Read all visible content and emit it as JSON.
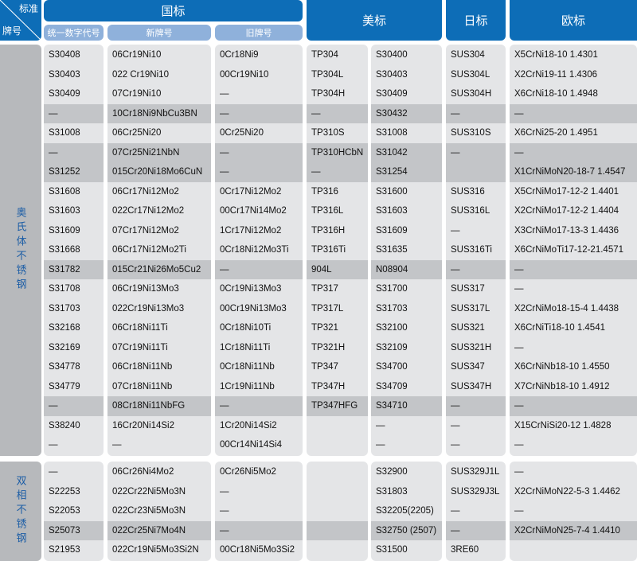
{
  "corner": {
    "top": "标准",
    "bottom": "牌号"
  },
  "headers": {
    "gb": "国标",
    "us": "美标",
    "jp": "日标",
    "eu": "欧标"
  },
  "subheaders": {
    "code": "统一数字代号",
    "new": "新牌号",
    "old": "旧牌号"
  },
  "sections": [
    {
      "label": "奥氏体不锈钢",
      "rows": [
        {
          "dark": false,
          "cells": [
            "S30408",
            "06Cr19Ni10",
            "0Cr18Ni9",
            "TP304",
            "S30400",
            "SUS304",
            "X5CrNi18-10 1.4301"
          ]
        },
        {
          "dark": false,
          "cells": [
            "S30403",
            "022 Cr19Ni10",
            "00Cr19Ni10",
            "TP304L",
            "S30403",
            "SUS304L",
            "X2CrNi19-11  1.4306"
          ]
        },
        {
          "dark": false,
          "cells": [
            "S30409",
            "07Cr19Ni10",
            "—",
            "TP304H",
            "S30409",
            "SUS304H",
            "X6CrNi18-10  1.4948"
          ]
        },
        {
          "dark": true,
          "cells": [
            "—",
            "10Cr18Ni9NbCu3BN",
            "—",
            "—",
            "S30432",
            "—",
            "—"
          ]
        },
        {
          "dark": false,
          "cells": [
            "S31008",
            "06Cr25Ni20",
            "0Cr25Ni20",
            "TP310S",
            "S31008",
            "SUS310S",
            "X6CrNi25-20 1.4951"
          ]
        },
        {
          "dark": true,
          "cells": [
            "—",
            "07Cr25Ni21NbN",
            "—",
            "TP310HCbN",
            "S31042",
            "—",
            "—"
          ]
        },
        {
          "dark": true,
          "cells": [
            "S31252",
            "015Cr20Ni18Mo6CuN",
            "—",
            "—",
            "S31254",
            "",
            "X1CrNiMoN20-18-7 1.4547"
          ]
        },
        {
          "dark": false,
          "cells": [
            "S31608",
            "06Cr17Ni12Mo2",
            "0Cr17Ni12Mo2",
            "TP316",
            "S31600",
            "SUS316",
            "X5CrNiMo17-12-2 1.4401"
          ]
        },
        {
          "dark": false,
          "cells": [
            "S31603",
            "022Cr17Ni12Mo2",
            "00Cr17Ni14Mo2",
            "TP316L",
            "S31603",
            "SUS316L",
            "X2CrNiMo17-12-2 1.4404"
          ]
        },
        {
          "dark": false,
          "cells": [
            "S31609",
            "07Cr17Ni12Mo2",
            "1Cr17Ni12Mo2",
            "TP316H",
            "S31609",
            "—",
            "X3CrNiMo17-13-3 1.4436"
          ]
        },
        {
          "dark": false,
          "cells": [
            "S31668",
            "06Cr17Ni12Mo2Ti",
            "0Cr18Ni12Mo3Ti",
            "TP316Ti",
            "S31635",
            "SUS316Ti",
            "X6CrNiMoTi17-12-21.4571"
          ]
        },
        {
          "dark": true,
          "cells": [
            "S31782",
            "015Cr21Ni26Mo5Cu2",
            "—",
            "904L",
            "N08904",
            "—",
            "—"
          ]
        },
        {
          "dark": false,
          "cells": [
            "S31708",
            "06Cr19Ni13Mo3",
            "0Cr19Ni13Mo3",
            "TP317",
            "S31700",
            "SUS317",
            "—"
          ]
        },
        {
          "dark": false,
          "cells": [
            "S31703",
            "022Cr19Ni13Mo3",
            "00Cr19Ni13Mo3",
            "TP317L",
            "S31703",
            "SUS317L",
            "X2CrNiMo18-15-4 1.4438"
          ]
        },
        {
          "dark": false,
          "cells": [
            "S32168",
            "06Cr18Ni11Ti",
            "0Cr18Ni10Ti",
            "TP321",
            "S32100",
            "SUS321",
            "X6CrNiTi18-10 1.4541"
          ]
        },
        {
          "dark": false,
          "cells": [
            "S32169",
            "07Cr19Ni11Ti",
            "1Cr18Ni11Ti",
            "TP321H",
            "S32109",
            "SUS321H",
            "—"
          ]
        },
        {
          "dark": false,
          "cells": [
            "S34778",
            "06Cr18Ni11Nb",
            "0Cr18Ni11Nb",
            "TP347",
            "S34700",
            "SUS347",
            "X6CrNiNb18-10 1.4550"
          ]
        },
        {
          "dark": false,
          "cells": [
            "S34779",
            "07Cr18Ni11Nb",
            "1Cr19Ni11Nb",
            "TP347H",
            "S34709",
            "SUS347H",
            "X7CrNiNb18-10 1.4912"
          ]
        },
        {
          "dark": true,
          "cells": [
            "—",
            "08Cr18Ni11NbFG",
            "—",
            "TP347HFG",
            "S34710",
            "—",
            "—"
          ]
        },
        {
          "dark": false,
          "cells": [
            "S38240",
            "16Cr20Ni14Si2",
            "1Cr20Ni14Si2",
            "",
            "—",
            "—",
            "X15CrNiSi20-12 1.4828"
          ]
        },
        {
          "dark": false,
          "cells": [
            "—",
            "—",
            "00Cr14Ni14Si4",
            "",
            "—",
            "—",
            "—"
          ]
        }
      ]
    },
    {
      "label": "双相不锈钢",
      "rows": [
        {
          "dark": false,
          "cells": [
            "—",
            "06Cr26Ni4Mo2",
            "0Cr26Ni5Mo2",
            "",
            "S32900",
            "SUS329J1L",
            "—"
          ]
        },
        {
          "dark": false,
          "cells": [
            "S22253",
            "022Cr22Ni5Mo3N",
            "—",
            "",
            "S31803",
            "SUS329J3L",
            "X2CrNiMoN22-5-3 1.4462"
          ]
        },
        {
          "dark": false,
          "cells": [
            "S22053",
            "022Cr23Ni5Mo3N",
            "—",
            "",
            "S32205(2205)",
            "—",
            "—"
          ]
        },
        {
          "dark": true,
          "cells": [
            "S25073",
            "022Cr25Ni7Mo4N",
            "—",
            "",
            "S32750 (2507)",
            "—",
            "X2CrNiMoN25-7-4 1.4410"
          ]
        },
        {
          "dark": false,
          "cells": [
            "S21953",
            "022Cr19Ni5Mo3Si2N",
            "00Cr18Ni5Mo3Si2",
            "",
            "S31500",
            "3RE60",
            ""
          ]
        }
      ]
    }
  ]
}
